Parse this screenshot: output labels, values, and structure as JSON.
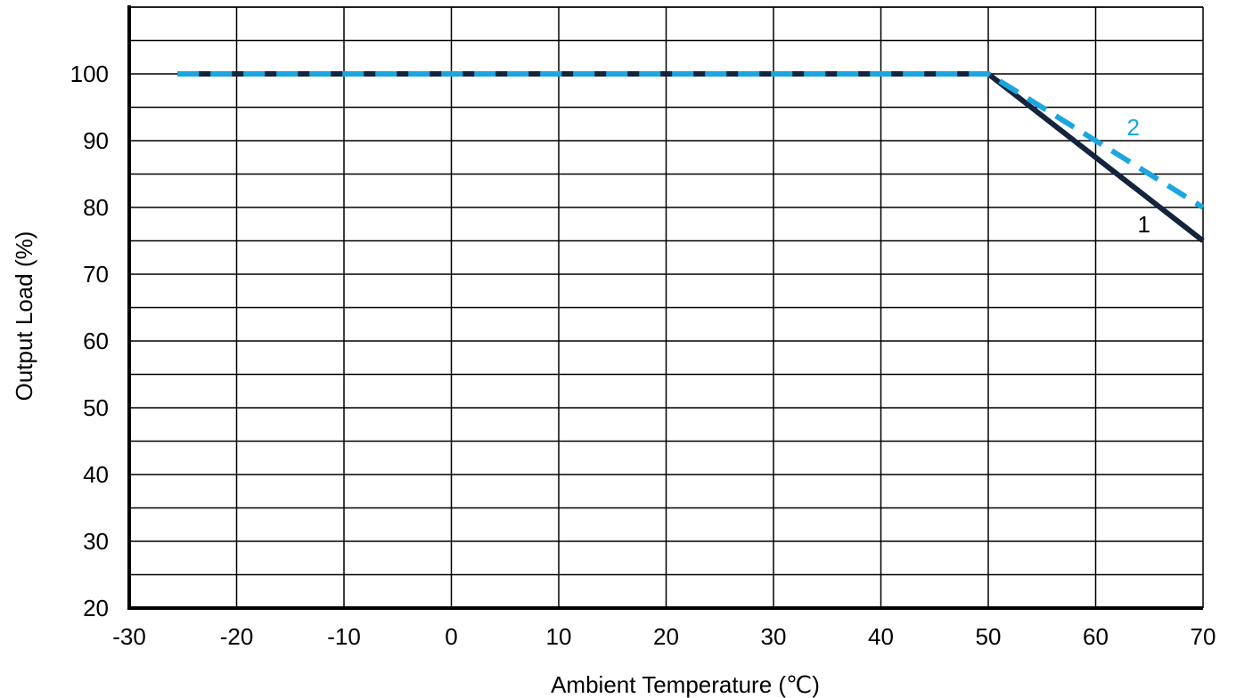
{
  "chart_data": {
    "type": "line",
    "title": "",
    "xlabel": "Ambient Temperature (℃)",
    "ylabel": "Output Load (%)",
    "xlim": [
      -30,
      70
    ],
    "ylim": [
      20,
      110
    ],
    "x_ticks": [
      -30,
      -20,
      -10,
      0,
      10,
      20,
      30,
      40,
      50,
      60,
      70
    ],
    "y_ticks": [
      20,
      30,
      40,
      50,
      60,
      70,
      80,
      90,
      100
    ],
    "grid": true,
    "legend": "none",
    "series": [
      {
        "name": "1",
        "color": "#14243c",
        "style": "solid",
        "x": [
          -25.5,
          50,
          70
        ],
        "y": [
          100,
          100,
          75
        ]
      },
      {
        "name": "2",
        "color": "#1ba6e0",
        "style": "dashed",
        "x": [
          -25.5,
          50,
          70
        ],
        "y": [
          100,
          100,
          80
        ]
      }
    ],
    "annotations": [
      {
        "text": "2",
        "x": 63.5,
        "y": 92,
        "color": "#1ba6e0"
      },
      {
        "text": "1",
        "x": 64.5,
        "y": 77.5,
        "color": "#000000"
      }
    ]
  }
}
